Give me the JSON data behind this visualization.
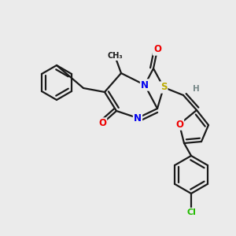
{
  "bg_color": "#ebebeb",
  "bond_color": "#1a1a1a",
  "atom_colors": {
    "N": "#0000ee",
    "O": "#ee0000",
    "S": "#bbaa00",
    "Cl": "#22bb00",
    "H": "#778888",
    "C": "#1a1a1a"
  }
}
